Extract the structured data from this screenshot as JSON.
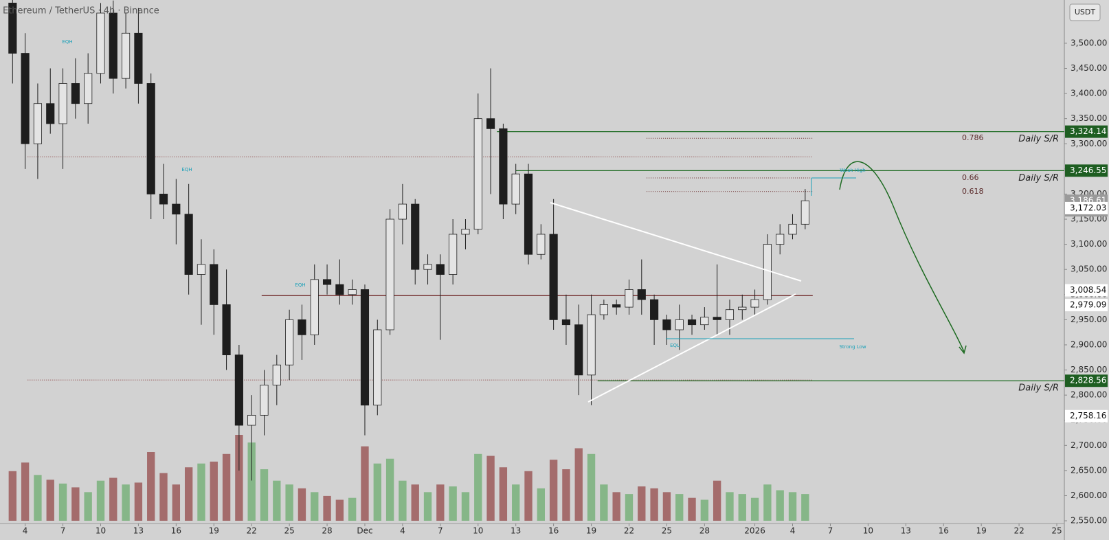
{
  "chart_data": {
    "type": "candlestick",
    "title": "Ethereum / TetherUS · 4h · Binance",
    "currency": "USDT",
    "x": [
      0,
      1,
      2,
      3,
      4,
      5,
      6,
      7,
      8,
      9,
      10,
      11,
      12,
      13,
      14,
      15,
      16,
      17,
      18,
      19,
      20,
      21,
      22,
      23,
      24,
      25,
      26,
      27,
      28,
      29,
      30,
      31,
      32,
      33,
      34,
      35,
      36,
      37,
      38,
      39,
      40,
      41,
      42,
      43,
      44,
      45,
      46,
      47,
      48,
      49,
      50,
      51,
      52,
      53,
      54,
      55,
      56,
      57,
      58,
      59,
      60,
      61,
      62,
      63
    ],
    "candles": [
      [
        3580,
        3600,
        3420,
        3480
      ],
      [
        3480,
        3520,
        3250,
        3300
      ],
      [
        3300,
        3420,
        3230,
        3380
      ],
      [
        3380,
        3450,
        3320,
        3340
      ],
      [
        3340,
        3450,
        3250,
        3420
      ],
      [
        3420,
        3470,
        3350,
        3380
      ],
      [
        3380,
        3480,
        3340,
        3440
      ],
      [
        3440,
        3580,
        3420,
        3560
      ],
      [
        3560,
        3585,
        3400,
        3430
      ],
      [
        3430,
        3560,
        3410,
        3520
      ],
      [
        3520,
        3570,
        3380,
        3420
      ],
      [
        3420,
        3440,
        3150,
        3200
      ],
      [
        3200,
        3260,
        3150,
        3180
      ],
      [
        3180,
        3230,
        3100,
        3160
      ],
      [
        3160,
        3220,
        3000,
        3040
      ],
      [
        3040,
        3110,
        2940,
        3060
      ],
      [
        3060,
        3090,
        2920,
        2980
      ],
      [
        2980,
        3050,
        2850,
        2880
      ],
      [
        2880,
        2900,
        2650,
        2740
      ],
      [
        2740,
        2800,
        2630,
        2760
      ],
      [
        2760,
        2850,
        2720,
        2820
      ],
      [
        2820,
        2880,
        2780,
        2860
      ],
      [
        2860,
        2970,
        2830,
        2950
      ],
      [
        2950,
        2980,
        2870,
        2920
      ],
      [
        2920,
        3060,
        2900,
        3030
      ],
      [
        3030,
        3060,
        3000,
        3020
      ],
      [
        3020,
        3070,
        2980,
        3000
      ],
      [
        3000,
        3030,
        2980,
        3010
      ],
      [
        3010,
        3020,
        2720,
        2780
      ],
      [
        2780,
        2950,
        2760,
        2930
      ],
      [
        2930,
        3170,
        2920,
        3150
      ],
      [
        3150,
        3220,
        3100,
        3180
      ],
      [
        3180,
        3190,
        3020,
        3050
      ],
      [
        3050,
        3080,
        3020,
        3060
      ],
      [
        3060,
        3080,
        2910,
        3040
      ],
      [
        3040,
        3150,
        3020,
        3120
      ],
      [
        3120,
        3150,
        3090,
        3130
      ],
      [
        3130,
        3400,
        3120,
        3350
      ],
      [
        3350,
        3450,
        3200,
        3330
      ],
      [
        3330,
        3340,
        3150,
        3180
      ],
      [
        3180,
        3260,
        3160,
        3240
      ],
      [
        3240,
        3260,
        3060,
        3080
      ],
      [
        3080,
        3140,
        3070,
        3120
      ],
      [
        3120,
        3190,
        2930,
        2950
      ],
      [
        2950,
        3000,
        2900,
        2940
      ],
      [
        2940,
        2980,
        2800,
        2840
      ],
      [
        2840,
        3000,
        2780,
        2960
      ],
      [
        2960,
        2990,
        2950,
        2980
      ],
      [
        2980,
        2990,
        2960,
        2975
      ],
      [
        2975,
        3030,
        2960,
        3010
      ],
      [
        3010,
        3070,
        2960,
        2990
      ],
      [
        2990,
        3000,
        2900,
        2950
      ],
      [
        2950,
        2960,
        2900,
        2930
      ],
      [
        2930,
        2980,
        2890,
        2950
      ],
      [
        2950,
        2960,
        2920,
        2940
      ],
      [
        2940,
        2975,
        2930,
        2955
      ],
      [
        2955,
        3060,
        2920,
        2950
      ],
      [
        2950,
        2990,
        2920,
        2970
      ],
      [
        2970,
        3000,
        2950,
        2975
      ],
      [
        2975,
        3010,
        2960,
        2990
      ],
      [
        2990,
        3120,
        2980,
        3100
      ],
      [
        3100,
        3140,
        3080,
        3120
      ],
      [
        3120,
        3160,
        3110,
        3140
      ],
      [
        3140,
        3210,
        3130,
        3186.61
      ]
    ],
    "volume": [
      520,
      610,
      480,
      430,
      390,
      350,
      300,
      420,
      450,
      380,
      400,
      720,
      500,
      380,
      560,
      600,
      620,
      700,
      900,
      820,
      540,
      420,
      380,
      340,
      300,
      260,
      220,
      240,
      780,
      600,
      650,
      420,
      380,
      300,
      380,
      360,
      300,
      700,
      680,
      560,
      380,
      520,
      340,
      640,
      540,
      760,
      700,
      380,
      300,
      280,
      360,
      340,
      300,
      280,
      240,
      220,
      420,
      300,
      280,
      240,
      380,
      320,
      300,
      280
    ],
    "up_color": "#e4e4e4",
    "down_color": "#1e1e1e",
    "volume_up_color": "#79b27b",
    "volume_down_color": "#9c5a5a",
    "xlim": [
      -1,
      83.6
    ],
    "ylim": [
      2520,
      3586
    ],
    "xticks": [
      {
        "value": 1,
        "label": "4"
      },
      {
        "value": 4,
        "label": "7"
      },
      {
        "value": 7,
        "label": "10"
      },
      {
        "value": 10,
        "label": "13"
      },
      {
        "value": 13,
        "label": "16"
      },
      {
        "value": 16,
        "label": "19"
      },
      {
        "value": 19,
        "label": "22"
      },
      {
        "value": 22,
        "label": "25"
      },
      {
        "value": 25,
        "label": "28"
      },
      {
        "value": 28,
        "label": "Dec"
      },
      {
        "value": 31,
        "label": "4"
      },
      {
        "value": 34,
        "label": "7"
      },
      {
        "value": 37,
        "label": "10"
      },
      {
        "value": 40,
        "label": "13"
      },
      {
        "value": 43,
        "label": "16"
      },
      {
        "value": 46,
        "label": "19"
      },
      {
        "value": 49,
        "label": "22"
      },
      {
        "value": 52,
        "label": "25"
      },
      {
        "value": 55,
        "label": "28"
      },
      {
        "value": 59,
        "label": "2026"
      },
      {
        "value": 62,
        "label": "4"
      },
      {
        "value": 65,
        "label": "7"
      },
      {
        "value": 68,
        "label": "10"
      },
      {
        "value": 71,
        "label": "13"
      },
      {
        "value": 74,
        "label": "16"
      },
      {
        "value": 77,
        "label": "19"
      },
      {
        "value": 80,
        "label": "22"
      },
      {
        "value": 83,
        "label": "25"
      }
    ],
    "yticks": [
      {
        "value": 2550,
        "label": "2,550.00"
      },
      {
        "value": 2600,
        "label": "2,600.00"
      },
      {
        "value": 2650,
        "label": "2,650.00"
      },
      {
        "value": 2700,
        "label": "2,700.00"
      },
      {
        "value": 2750,
        "label": "2,750.00"
      },
      {
        "value": 2800,
        "label": "2,800.00"
      },
      {
        "value": 2850,
        "label": "2,850.00"
      },
      {
        "value": 2900,
        "label": "2,900.00"
      },
      {
        "value": 2950,
        "label": "2,950.00"
      },
      {
        "value": 3000,
        "label": "3,000.00"
      },
      {
        "value": 3050,
        "label": "3,050.00"
      },
      {
        "value": 3100,
        "label": "3,100.00"
      },
      {
        "value": 3150,
        "label": "3,150.00"
      },
      {
        "value": 3200,
        "label": "3,200.00"
      },
      {
        "value": 3250,
        "label": "3,250.00"
      },
      {
        "value": 3300,
        "label": "3,300.00"
      },
      {
        "value": 3350,
        "label": "3,350.00"
      },
      {
        "value": 3400,
        "label": "3,400.00"
      },
      {
        "value": 3450,
        "label": "3,450.00"
      },
      {
        "value": 3500,
        "label": "3,500.00"
      }
    ],
    "levels": [
      {
        "value": 3324.14,
        "from": 38.5,
        "to": 83.6,
        "color": "#1e6b22",
        "dash": false,
        "label": "Daily S/R"
      },
      {
        "value": 3246.55,
        "from": 40,
        "to": 83.6,
        "color": "#1e6b22",
        "dash": false,
        "label": "Daily S/R"
      },
      {
        "value": 2828.56,
        "from": 46.5,
        "to": 83.6,
        "color": "#1e6b22",
        "dash": false,
        "label": "Daily S/R"
      },
      {
        "value": 3311,
        "from": 50.4,
        "to": 63.6,
        "color": "#6a2a2a",
        "dash": true,
        "label": "0.786"
      },
      {
        "value": 3232,
        "from": 50.4,
        "to": 63.6,
        "color": "#6a2a2a",
        "dash": true,
        "label": "0.66"
      },
      {
        "value": 3205,
        "from": 50.4,
        "to": 63.6,
        "color": "#6a2a2a",
        "dash": true,
        "label": "0.618"
      },
      {
        "value": 3274,
        "from": 1.2,
        "to": 63.6,
        "color": "#8a3a3a",
        "dash": true
      },
      {
        "value": 2998,
        "from": 19.8,
        "to": 63.6,
        "color": "#6a2020",
        "dash": false
      },
      {
        "value": 2830,
        "from": 1.2,
        "to": 63.6,
        "color": "#8a3a3a",
        "dash": true
      }
    ],
    "price_labels": [
      {
        "value": 3324.14,
        "label": "3,324.14",
        "color": "#1e5e22"
      },
      {
        "value": 3246.55,
        "label": "3,246.55",
        "color": "#1e5e22"
      },
      {
        "value": 3186.61,
        "label": "3,186.61",
        "color": "#9a9a9a"
      },
      {
        "value": 3172.03,
        "label": "3,172.03",
        "color": "#ffffff"
      },
      {
        "value": 3008.54,
        "label": "3,008.54",
        "color": "#ffffff"
      },
      {
        "value": 2979.09,
        "label": "2,979.09",
        "color": "#ffffff"
      },
      {
        "value": 2828.56,
        "label": "2,828.56",
        "color": "#1e5e22"
      },
      {
        "value": 2758.16,
        "label": "2,758.16",
        "color": "#ffffff"
      }
    ],
    "countdown": "13:11",
    "annotations": [
      "EQH",
      "EQH",
      "EQH",
      "EQL",
      "Strong Low",
      "Weak High"
    ]
  }
}
